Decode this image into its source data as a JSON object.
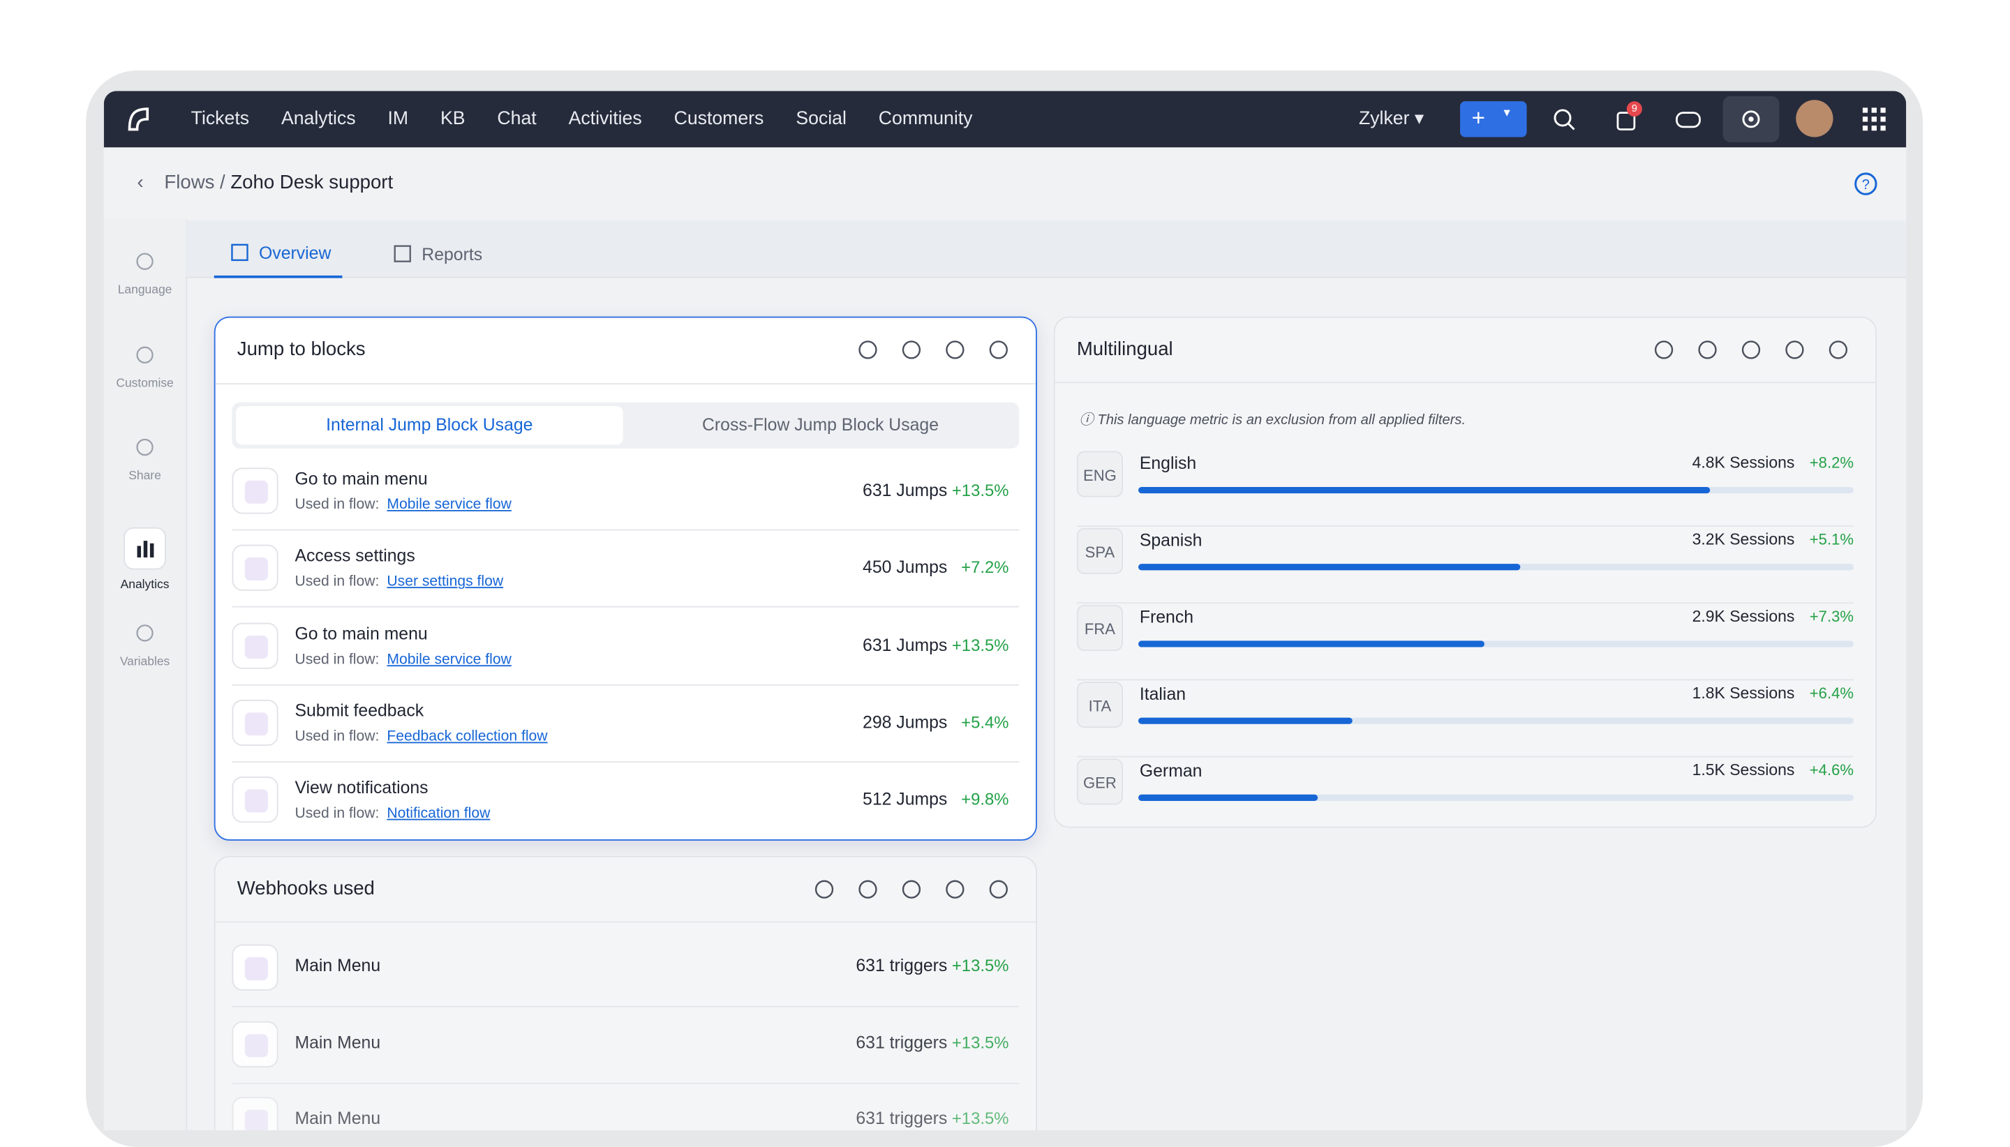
{
  "nav": {
    "items": [
      "Tickets",
      "Analytics",
      "IM",
      "KB",
      "Chat",
      "Activities",
      "Customers",
      "Social",
      "Community"
    ],
    "org": "Zylker",
    "badge": "9"
  },
  "breadcrumb": {
    "parent": "Flows",
    "sep": "/",
    "current": "Zoho Desk support"
  },
  "sidebar": [
    "Language",
    "Customise",
    "Share",
    "Analytics",
    "Variables"
  ],
  "tabs": [
    "Overview",
    "Reports"
  ],
  "jump_card": {
    "title": "Jump to blocks",
    "toggles": [
      "Internal Jump Block Usage",
      "Cross-Flow Jump Block Usage"
    ],
    "used_label": "Used in flow:",
    "rows": [
      {
        "name": "Go to main menu",
        "flow": "Mobile service flow",
        "count": "631 Jumps",
        "change": "+13.5%"
      },
      {
        "name": "Access settings",
        "flow": "User settings flow",
        "count": "450 Jumps",
        "change": "+7.2%"
      },
      {
        "name": "Go to main menu",
        "flow": "Mobile service flow",
        "count": "631 Jumps",
        "change": "+13.5%"
      },
      {
        "name": "Submit feedback",
        "flow": "Feedback collection flow",
        "count": "298 Jumps",
        "change": "+5.4%"
      },
      {
        "name": "View notifications",
        "flow": "Notification flow",
        "count": "512 Jumps",
        "change": "+9.8%"
      }
    ]
  },
  "multilingual": {
    "title": "Multilingual",
    "note": "This language metric is an exclusion from all applied filters.",
    "rows": [
      {
        "code": "ENG",
        "name": "English",
        "sessions": {
          "value": 4800,
          "label": "4.8K Sessions"
        },
        "change": "+8.2%"
      },
      {
        "code": "SPA",
        "name": "Spanish",
        "sessions": {
          "value": 3200,
          "label": "3.2K Sessions"
        },
        "change": "+5.1%"
      },
      {
        "code": "FRA",
        "name": "French",
        "sessions": {
          "value": 2900,
          "label": "2.9K Sessions"
        },
        "change": "+7.3%"
      },
      {
        "code": "ITA",
        "name": "Italian",
        "sessions": {
          "value": 1800,
          "label": "1.8K Sessions"
        },
        "change": "+6.4%"
      },
      {
        "code": "GER",
        "name": "German",
        "sessions": {
          "value": 1500,
          "label": "1.5K Sessions"
        },
        "change": "+4.6%"
      }
    ]
  },
  "webhooks": {
    "title": "Webhooks used",
    "rows": [
      {
        "name": "Main Menu",
        "count": "631 triggers",
        "change": "+13.5%"
      },
      {
        "name": "Main Menu",
        "count": "631 triggers",
        "change": "+13.5%"
      },
      {
        "name": "Main Menu",
        "count": "631 triggers",
        "change": "+13.5%"
      }
    ]
  }
}
